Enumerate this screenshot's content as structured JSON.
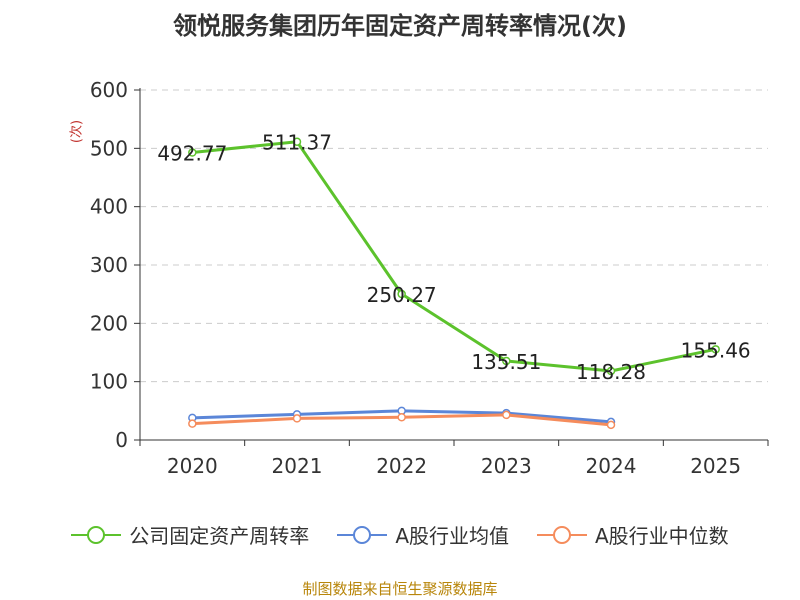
{
  "chart_data": {
    "type": "line",
    "title": "领悦服务集团历年固定资产周转率情况(次)",
    "ylabel": "(次)",
    "xlabel": "",
    "categories": [
      "2020",
      "2021",
      "2022",
      "2023",
      "2024",
      "2025"
    ],
    "ylim": [
      0,
      600
    ],
    "yticks": [
      0,
      100,
      200,
      300,
      400,
      500,
      600
    ],
    "grid": true,
    "legend_position": "bottom",
    "series": [
      {
        "name": "公司固定资产周转率",
        "color": "#5cc22c",
        "values": [
          492.77,
          511.37,
          250.27,
          135.51,
          118.28,
          155.46
        ],
        "labels": [
          "492.77",
          "511.37",
          "250.27",
          "135.51",
          "118.28",
          "155.46"
        ],
        "show_labels": true
      },
      {
        "name": "A股行业均值",
        "color": "#5b86d8",
        "values": [
          38,
          44,
          50,
          46,
          31,
          null
        ],
        "show_labels": false
      },
      {
        "name": "A股行业中位数",
        "color": "#f58c5c",
        "values": [
          28,
          37,
          39,
          43,
          26,
          null
        ],
        "show_labels": false
      }
    ]
  },
  "source": "制图数据来自恒生聚源数据库"
}
